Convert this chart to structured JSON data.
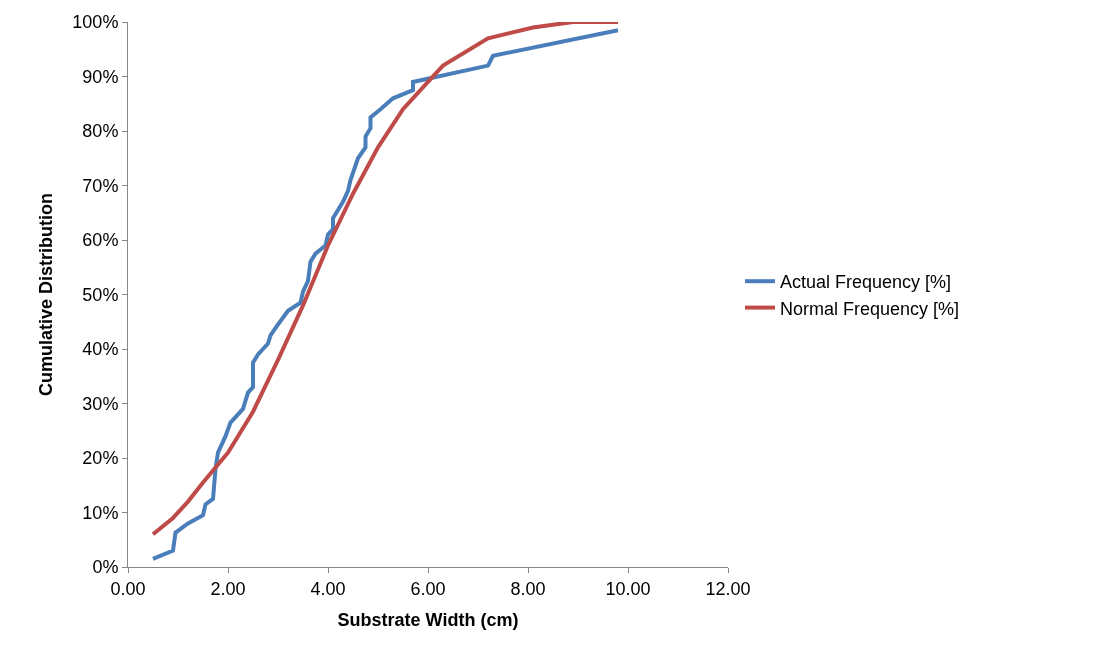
{
  "chart_data": {
    "type": "line",
    "xlabel": "Substrate Width (cm)",
    "ylabel": "Cumulative Distribution",
    "xlim": [
      0,
      12
    ],
    "xticks": [
      {
        "value": 0,
        "label": "0.00"
      },
      {
        "value": 2,
        "label": "2.00"
      },
      {
        "value": 4,
        "label": "4.00"
      },
      {
        "value": 6,
        "label": "6.00"
      },
      {
        "value": 8,
        "label": "8.00"
      },
      {
        "value": 10,
        "label": "10.00"
      },
      {
        "value": 12,
        "label": "12.00"
      }
    ],
    "ylim": [
      0,
      100
    ],
    "yticks": [
      {
        "value": 0,
        "label": "0%"
      },
      {
        "value": 10,
        "label": "10%"
      },
      {
        "value": 20,
        "label": "20%"
      },
      {
        "value": 30,
        "label": "30%"
      },
      {
        "value": 40,
        "label": "40%"
      },
      {
        "value": 50,
        "label": "50%"
      },
      {
        "value": 60,
        "label": "60%"
      },
      {
        "value": 70,
        "label": "70%"
      },
      {
        "value": 80,
        "label": "80%"
      },
      {
        "value": 90,
        "label": "90%"
      },
      {
        "value": 100,
        "label": "100%"
      }
    ],
    "legend": "right",
    "marker": "none",
    "line_style": "solid",
    "series": [
      {
        "name": "Actual Frequency [%]",
        "color": "#4a7ebb",
        "x": [
          0.5,
          0.9,
          0.95,
          1.2,
          1.5,
          1.55,
          1.7,
          1.75,
          1.8,
          1.95,
          2.05,
          2.3,
          2.4,
          2.5,
          2.5,
          2.6,
          2.8,
          2.85,
          3.0,
          3.2,
          3.45,
          3.5,
          3.6,
          3.65,
          3.75,
          3.95,
          4.0,
          4.1,
          4.1,
          4.3,
          4.4,
          4.45,
          4.6,
          4.75,
          4.75,
          4.85,
          4.85,
          5.05,
          5.3,
          5.7,
          5.7,
          7.2,
          7.3,
          9.8
        ],
        "values": [
          1.5,
          3,
          6.3,
          8,
          9.5,
          11.5,
          12.5,
          18,
          21,
          24,
          26.5,
          29,
          32,
          33,
          37.5,
          39,
          41,
          42.5,
          44.5,
          47,
          48.5,
          50.5,
          52.5,
          56,
          57.5,
          59,
          61,
          62,
          64,
          67,
          69,
          71,
          75,
          77,
          79,
          80.5,
          82.5,
          84,
          86,
          87.5,
          89,
          92,
          93.8,
          98.5
        ]
      },
      {
        "name": "Normal Frequency [%]",
        "color": "#be4b48",
        "x": [
          0.5,
          0.9,
          1.2,
          1.5,
          2.0,
          2.5,
          3.0,
          3.5,
          4.0,
          4.5,
          5.0,
          5.5,
          6.0,
          6.3,
          7.2,
          8.1,
          8.9,
          9.8
        ],
        "values": [
          6,
          9,
          12,
          15.5,
          21,
          28.5,
          38,
          48,
          59,
          68.5,
          77,
          84,
          89,
          92,
          97,
          99,
          100,
          100
        ]
      }
    ]
  }
}
